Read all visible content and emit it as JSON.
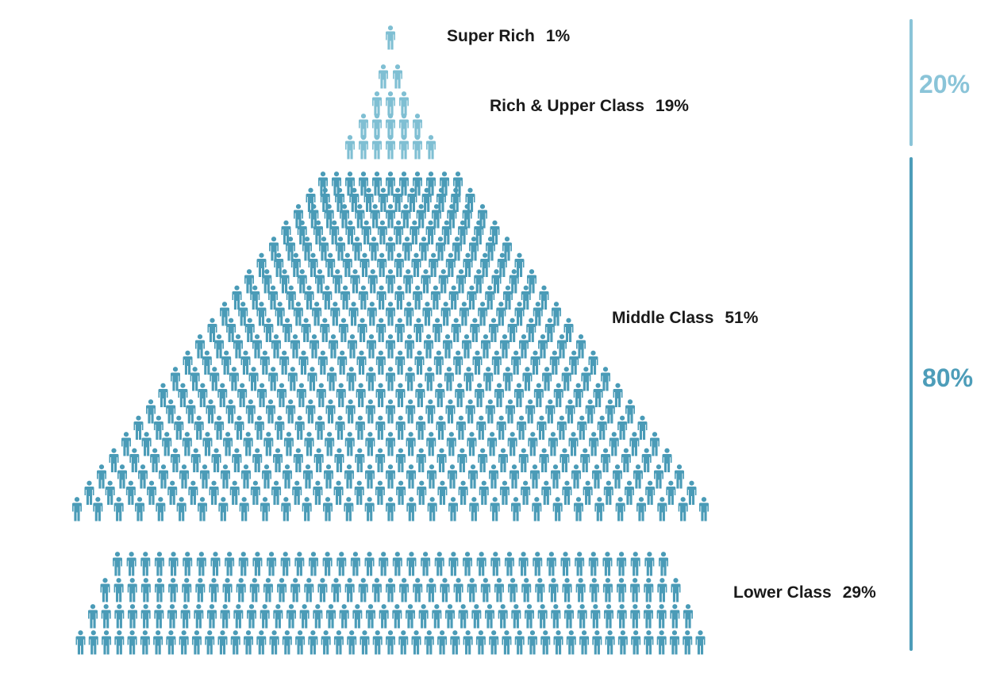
{
  "colors": {
    "top_figure": "#7fbfd3",
    "bottom_figure": "#4a9bb7",
    "top_group": "#8ac4d8",
    "bottom_group": "#4d9db9",
    "label_text": "#1a1a1a"
  },
  "icon_name": "person-icon",
  "tiers": [
    {
      "name": "Super Rich",
      "percent": "1%"
    },
    {
      "name": "Rich & Upper Class",
      "percent": "19%"
    },
    {
      "name": "Middle Class",
      "percent": "51%"
    },
    {
      "name": "Lower Class",
      "percent": "29%"
    }
  ],
  "groups": [
    {
      "percent": "20%"
    },
    {
      "percent": "80%"
    }
  ]
}
